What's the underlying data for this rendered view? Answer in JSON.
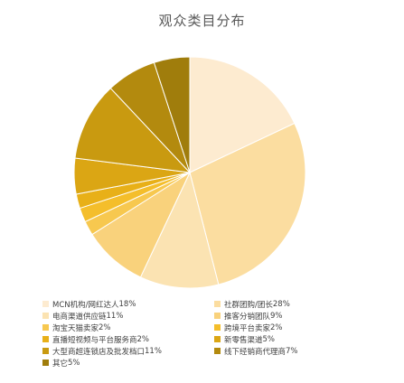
{
  "chart_data": {
    "type": "pie",
    "title": "观众类目分布",
    "legend_position": "bottom",
    "slices": [
      {
        "label": "MCN机构/网红达人",
        "value": 18,
        "pct": "18%",
        "color": "#FDEBD0"
      },
      {
        "label": "社群团购/团长",
        "value": 28,
        "pct": "28%",
        "color": "#FBDDA0"
      },
      {
        "label": "电商渠道供应链",
        "value": 11,
        "pct": "11%",
        "color": "#FBE3B2"
      },
      {
        "label": "推客分销团队",
        "value": 9,
        "pct": "9%",
        "color": "#F9D27C"
      },
      {
        "label": "淘宝天猫卖家",
        "value": 2,
        "pct": "2%",
        "color": "#F7C84F"
      },
      {
        "label": "跨境平台卖家",
        "value": 2,
        "pct": "2%",
        "color": "#F4BE2B"
      },
      {
        "label": "直播短视频与平台服务商",
        "value": 2,
        "pct": "2%",
        "color": "#E8B018"
      },
      {
        "label": "新零售渠道",
        "value": 5,
        "pct": "5%",
        "color": "#DBA614"
      },
      {
        "label": "大型商超连锁店及批发档口",
        "value": 11,
        "pct": "11%",
        "color": "#C99A10"
      },
      {
        "label": "线下经销商代理商",
        "value": 7,
        "pct": "7%",
        "color": "#B38A0E"
      },
      {
        "label": "其它",
        "value": 5,
        "pct": "5%",
        "color": "#A07D0C"
      }
    ]
  }
}
